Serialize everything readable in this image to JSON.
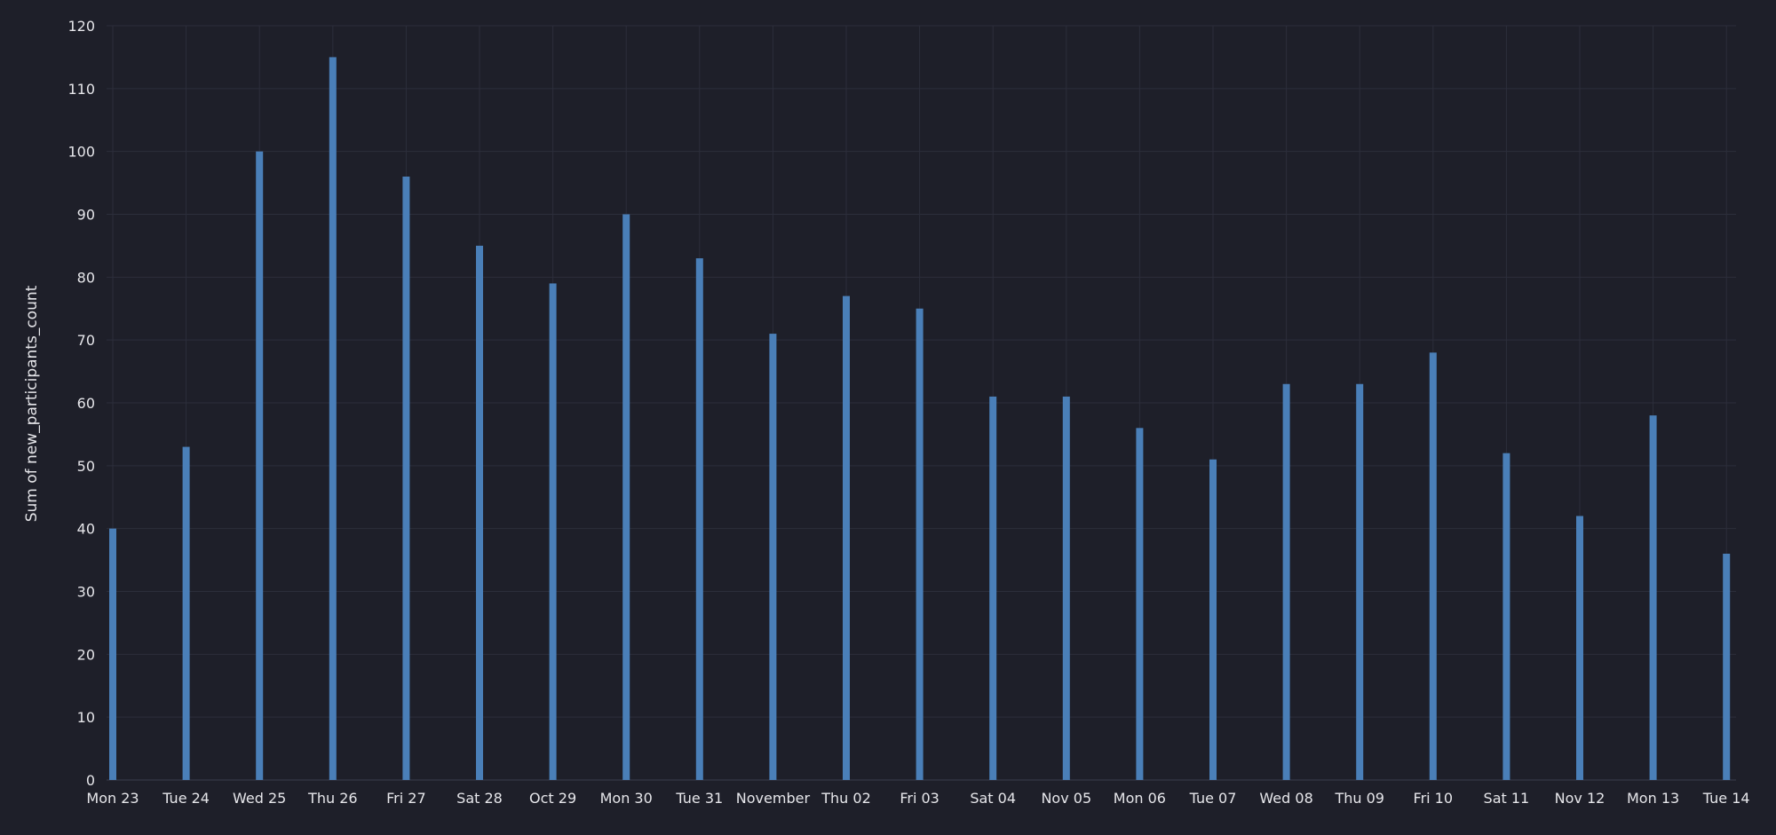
{
  "colors": {
    "background": "#1e1f29",
    "bar": "#4a7fb8",
    "grid": "#2c2e3b",
    "tick_text": "#e6e6ea"
  },
  "chart_data": {
    "type": "bar",
    "ylabel": "Sum of new_participants_count",
    "xlabel": "",
    "ylim": [
      0,
      120
    ],
    "yticks": [
      0,
      10,
      20,
      30,
      40,
      50,
      60,
      70,
      80,
      90,
      100,
      110,
      120
    ],
    "grid": true,
    "categories": [
      "Mon 23",
      "Tue 24",
      "Wed 25",
      "Thu 26",
      "Fri 27",
      "Sat 28",
      "Oct 29",
      "Mon 30",
      "Tue 31",
      "November",
      "Thu 02",
      "Fri 03",
      "Sat 04",
      "Nov 05",
      "Mon 06",
      "Tue 07",
      "Wed 08",
      "Thu 09",
      "Fri 10",
      "Sat 11",
      "Nov 12",
      "Mon 13",
      "Tue 14"
    ],
    "series": [
      {
        "values": [
          40,
          53,
          100,
          115,
          96,
          85,
          79,
          90,
          83,
          71,
          77,
          75,
          61,
          61,
          56,
          51,
          63,
          63,
          68,
          52,
          42,
          58,
          36
        ]
      }
    ]
  }
}
